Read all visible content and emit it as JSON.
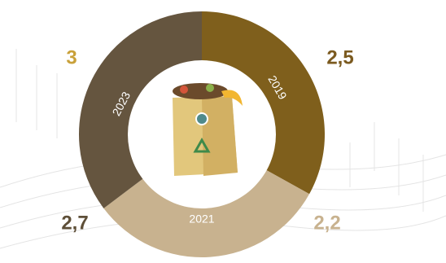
{
  "segments": [
    {
      "label": "2019"
    },
    {
      "label": "2021"
    },
    {
      "label": "2023"
    }
  ],
  "figures": [
    "3",
    "2,5",
    "2,2",
    "2,7"
  ]
}
